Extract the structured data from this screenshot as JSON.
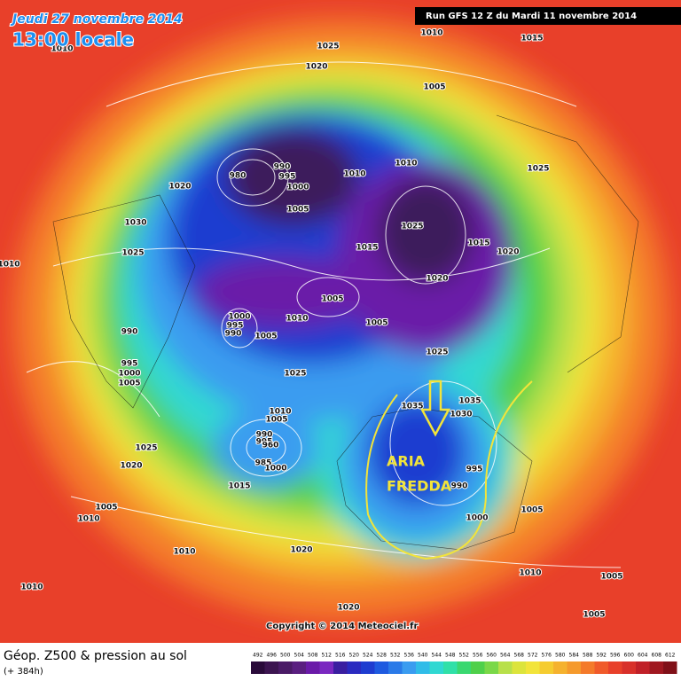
{
  "header": {
    "date": "Jeudi 27 novembre 2014",
    "time": "13:00 locale",
    "run": "Run GFS 12 Z du Mardi 11 novembre 2014"
  },
  "annotation": [
    "ARIA",
    "FREDDA"
  ],
  "isobar_labels": [
    1010,
    1025,
    1020,
    1010,
    1015,
    1005,
    990,
    980,
    995,
    1000,
    1020,
    1010,
    1010,
    1025,
    1030,
    1005,
    1025,
    1015,
    1020,
    1015,
    1025,
    1010,
    1020,
    1005,
    1000,
    995,
    990,
    1010,
    1005,
    1005,
    990,
    1025,
    1025,
    995,
    1000,
    1005,
    1035,
    1035,
    1030,
    1010,
    1005,
    990,
    995,
    960,
    985,
    1000,
    1025,
    1020,
    995,
    990,
    1000,
    1015,
    1005,
    1005,
    1010,
    1010,
    1020,
    1010,
    1005,
    1010,
    1020,
    1005
  ],
  "copyright": "Copyright © 2014 Meteociel.fr",
  "footer": {
    "title": "Géop. Z500 & pression au sol",
    "lead": "(+ 384h)"
  },
  "legend": {
    "levels": [
      492,
      496,
      500,
      504,
      508,
      512,
      516,
      520,
      524,
      528,
      532,
      536,
      540,
      544,
      548,
      552,
      556,
      560,
      564,
      568,
      572,
      576,
      580,
      584,
      588,
      592,
      596,
      600,
      604,
      608,
      612
    ]
  }
}
